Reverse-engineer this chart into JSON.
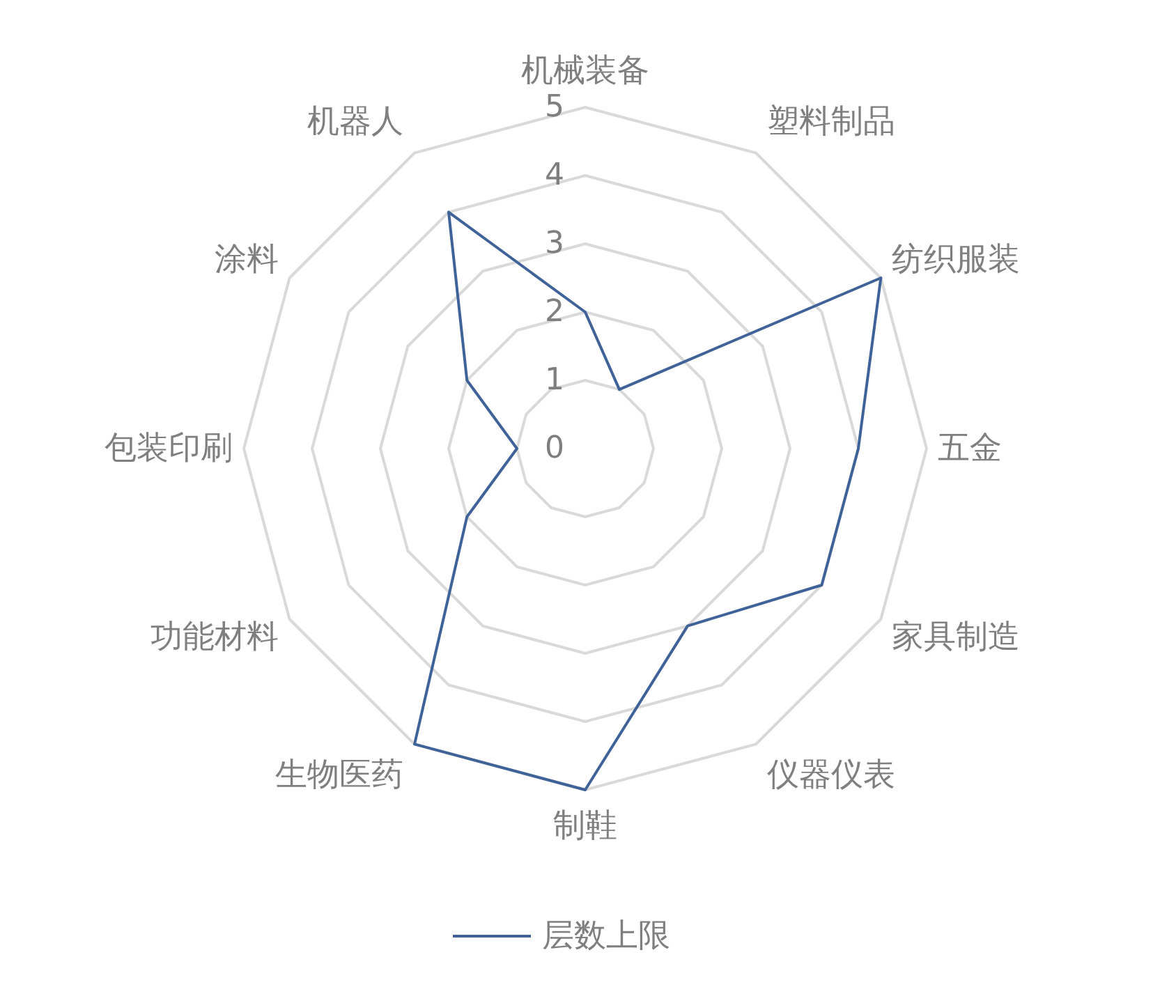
{
  "chart_data": {
    "type": "radar",
    "categories": [
      "机械装备",
      "塑料制品",
      "纺织服装",
      "五金",
      "家具制造",
      "仪器仪表",
      "制鞋",
      "生物医药",
      "功能材料",
      "包装印刷",
      "涂料",
      "机器人"
    ],
    "series": [
      {
        "name": "层数上限",
        "color": "#3f6398",
        "values": [
          2,
          1,
          5,
          4,
          4,
          3,
          5,
          5,
          2,
          1,
          2,
          4
        ]
      }
    ],
    "ylim": [
      0,
      5
    ],
    "yticks": [
      0,
      1,
      2,
      3,
      4,
      5
    ],
    "grid": true,
    "legend": "bottom"
  }
}
